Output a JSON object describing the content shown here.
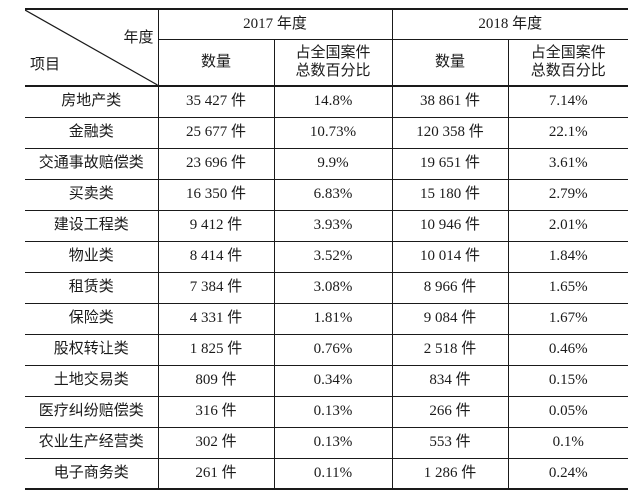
{
  "chart_data": {
    "type": "table",
    "corner": {
      "top_right_label": "年度",
      "bottom_left_label": "项目"
    },
    "column_groups": {
      "y2017": "2017 年度",
      "y2018": "2018 年度"
    },
    "sub_header": {
      "qty": "数量",
      "pct_line1": "占全国案件",
      "pct_line2": "总数百分比"
    },
    "unit_suffix": "件",
    "rows": [
      {
        "category": "房地产类",
        "qty_2017": "35 427 件",
        "pct_2017": "14.8%",
        "qty_2018": "38 861 件",
        "pct_2018": "7.14%"
      },
      {
        "category": "金融类",
        "qty_2017": "25 677 件",
        "pct_2017": "10.73%",
        "qty_2018": "120 358 件",
        "pct_2018": "22.1%"
      },
      {
        "category": "交通事故赔偿类",
        "qty_2017": "23 696 件",
        "pct_2017": "9.9%",
        "qty_2018": "19 651 件",
        "pct_2018": "3.61%"
      },
      {
        "category": "买卖类",
        "qty_2017": "16 350 件",
        "pct_2017": "6.83%",
        "qty_2018": "15 180 件",
        "pct_2018": "2.79%"
      },
      {
        "category": "建设工程类",
        "qty_2017": "9 412 件",
        "pct_2017": "3.93%",
        "qty_2018": "10 946 件",
        "pct_2018": "2.01%"
      },
      {
        "category": "物业类",
        "qty_2017": "8 414 件",
        "pct_2017": "3.52%",
        "qty_2018": "10 014 件",
        "pct_2018": "1.84%"
      },
      {
        "category": "租赁类",
        "qty_2017": "7 384 件",
        "pct_2017": "3.08%",
        "qty_2018": "8 966 件",
        "pct_2018": "1.65%"
      },
      {
        "category": "保险类",
        "qty_2017": "4 331 件",
        "pct_2017": "1.81%",
        "qty_2018": "9 084 件",
        "pct_2018": "1.67%"
      },
      {
        "category": "股权转让类",
        "qty_2017": "1 825 件",
        "pct_2017": "0.76%",
        "qty_2018": "2 518 件",
        "pct_2018": "0.46%"
      },
      {
        "category": "土地交易类",
        "qty_2017": "809 件",
        "pct_2017": "0.34%",
        "qty_2018": "834 件",
        "pct_2018": "0.15%"
      },
      {
        "category": "医疗纠纷赔偿类",
        "qty_2017": "316 件",
        "pct_2017": "0.13%",
        "qty_2018": "266 件",
        "pct_2018": "0.05%"
      },
      {
        "category": "农业生产经营类",
        "qty_2017": "302 件",
        "pct_2017": "0.13%",
        "qty_2018": "553 件",
        "pct_2018": "0.1%"
      },
      {
        "category": "电子商务类",
        "qty_2017": "261 件",
        "pct_2017": "0.11%",
        "qty_2018": "1 286 件",
        "pct_2018": "0.24%"
      }
    ],
    "numeric": {
      "categories": [
        "房地产类",
        "金融类",
        "交通事故赔偿类",
        "买卖类",
        "建设工程类",
        "物业类",
        "租赁类",
        "保险类",
        "股权转让类",
        "土地交易类",
        "医疗纠纷赔偿类",
        "农业生产经营类",
        "电子商务类"
      ],
      "qty_2017": [
        35427,
        25677,
        23696,
        16350,
        9412,
        8414,
        7384,
        4331,
        1825,
        809,
        316,
        302,
        261
      ],
      "pct_2017": [
        14.8,
        10.73,
        9.9,
        6.83,
        3.93,
        3.52,
        3.08,
        1.81,
        0.76,
        0.34,
        0.13,
        0.13,
        0.11
      ],
      "qty_2018": [
        38861,
        120358,
        19651,
        15180,
        10946,
        10014,
        8966,
        9084,
        2518,
        834,
        266,
        553,
        1286
      ],
      "pct_2018": [
        7.14,
        22.1,
        3.61,
        2.79,
        2.01,
        1.84,
        1.65,
        1.67,
        0.46,
        0.15,
        0.05,
        0.1,
        0.24
      ]
    }
  },
  "colors": {
    "background": "#ffffff",
    "text": "#1a1a1a",
    "border": "#1a1a1a"
  }
}
